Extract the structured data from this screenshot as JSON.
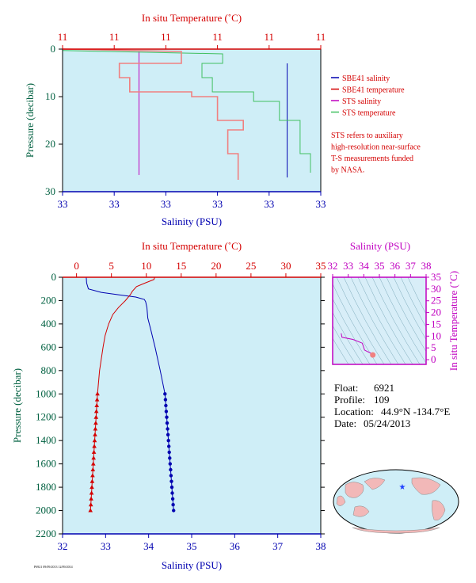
{
  "colors": {
    "plot_bg": "#cfeef7",
    "red": "#d40000",
    "salmon": "#f08080",
    "blue": "#0000b0",
    "green": "#40c060",
    "magenta": "#c000c0",
    "axis_green": "#1a5a3a",
    "ts_panel_bg": "#d8eef8"
  },
  "legend": {
    "items": [
      {
        "label": "SBE41 salinity",
        "color": "#0000b0"
      },
      {
        "label": "SBE41 temperature",
        "color": "#d40000"
      },
      {
        "label": "STS salinity",
        "color": "#c000c0"
      },
      {
        "label": "STS temperature",
        "color": "#40c060"
      }
    ],
    "note_lines": [
      "STS refers to auxiliary",
      "high-resolution near-surface",
      "T-S measurements funded",
      "by NASA."
    ]
  },
  "info": {
    "float_label": "Float:",
    "float_value": "6921",
    "profile_label": "Profile:",
    "profile_value": "109",
    "location_label": "Location:",
    "location_value": "44.9°N  -134.7°E",
    "date_label": "Date:",
    "date_value": "05/24/2013"
  },
  "footer_tiny": "P6921 09/09/2013 12/09/2014",
  "chart_data": [
    {
      "type": "line",
      "id": "near-surface",
      "top_axis_label": "In situ Temperature (˚C)",
      "bottom_axis_label": "Salinity (PSU)",
      "left_axis_label": "Pressure (decibar)",
      "top_ticks": [
        "11",
        "11",
        "11",
        "11",
        "11",
        "11"
      ],
      "bottom_ticks": [
        "33",
        "33",
        "33",
        "33",
        "33",
        "33"
      ],
      "y_ticks": [
        "0",
        "10",
        "20",
        "30"
      ],
      "ylim": [
        0,
        30
      ],
      "xlim_index": [
        0,
        5
      ],
      "series": [
        {
          "name": "STS salinity",
          "points": [
            [
              1.48,
              0.5
            ],
            [
              1.48,
              26.5
            ]
          ]
        },
        {
          "name": "SBE41 salinity",
          "points": [
            [
              4.35,
              3
            ],
            [
              4.35,
              27
            ]
          ]
        },
        {
          "name": "STS temperature",
          "points": [
            [
              0,
              0.3
            ],
            [
              3.1,
              1
            ],
            [
              3.1,
              3
            ],
            [
              2.7,
              3
            ],
            [
              2.7,
              6
            ],
            [
              2.9,
              6
            ],
            [
              2.9,
              9
            ],
            [
              3.7,
              9
            ],
            [
              3.7,
              11
            ],
            [
              4.2,
              11
            ],
            [
              4.2,
              15
            ],
            [
              4.6,
              15
            ],
            [
              4.6,
              22
            ],
            [
              4.8,
              22
            ],
            [
              4.8,
              26
            ]
          ]
        },
        {
          "name": "SBE41 temperature",
          "points": [
            [
              0,
              0
            ],
            [
              2.3,
              0.5
            ],
            [
              2.3,
              3
            ],
            [
              1.1,
              3
            ],
            [
              1.1,
              6
            ],
            [
              1.3,
              6
            ],
            [
              1.3,
              9
            ],
            [
              2.5,
              9
            ],
            [
              2.5,
              10
            ],
            [
              3.0,
              10
            ],
            [
              3.0,
              15
            ],
            [
              3.5,
              15
            ],
            [
              3.5,
              17
            ],
            [
              3.2,
              17
            ],
            [
              3.2,
              22
            ],
            [
              3.4,
              22
            ],
            [
              3.4,
              27.5
            ]
          ]
        }
      ]
    },
    {
      "type": "line",
      "id": "full-profile",
      "top_axis_label": "In situ Temperature (˚C)",
      "bottom_axis_label": "Salinity (PSU)",
      "left_axis_label": "Pressure (decibar)",
      "temperature_ticks": [
        0,
        5,
        10,
        15,
        20,
        25,
        30,
        35
      ],
      "salinity_ticks": [
        32,
        33,
        34,
        35,
        36,
        37,
        38
      ],
      "pressure_ticks": [
        0,
        200,
        400,
        600,
        800,
        1000,
        1200,
        1400,
        1600,
        1800,
        2000,
        2200
      ],
      "temperature_lim": [
        -2,
        35
      ],
      "salinity_lim": [
        32,
        38
      ],
      "pressure_lim": [
        0,
        2200
      ],
      "series": [
        {
          "name": "SBE41 salinity",
          "pressure": [
            0,
            50,
            100,
            130,
            150,
            170,
            190,
            210,
            260,
            350,
            450,
            600,
            800,
            1000
          ],
          "values": [
            32.55,
            32.56,
            32.6,
            32.9,
            33.3,
            33.7,
            33.9,
            33.93,
            33.96,
            33.98,
            34.05,
            34.15,
            34.27,
            34.38
          ]
        },
        {
          "name": "SBE41 temperature",
          "pressure": [
            0,
            20,
            50,
            80,
            120,
            150,
            200,
            260,
            320,
            400,
            500,
            600,
            800,
            1000
          ],
          "values": [
            11.2,
            11.1,
            9.8,
            8.6,
            8.0,
            7.7,
            7.0,
            6.0,
            5.2,
            4.6,
            4.1,
            3.8,
            3.3,
            3.0
          ]
        },
        {
          "name": "SBE41 salinity (deep samples)",
          "pressure": [
            1000,
            1050,
            1100,
            1150,
            1200,
            1250,
            1300,
            1350,
            1400,
            1450,
            1500,
            1550,
            1600,
            1650,
            1700,
            1750,
            1800,
            1850,
            1900,
            1950,
            2000
          ],
          "values": [
            34.38,
            34.39,
            34.4,
            34.41,
            34.42,
            34.43,
            34.44,
            34.45,
            34.46,
            34.47,
            34.48,
            34.49,
            34.5,
            34.51,
            34.52,
            34.53,
            34.54,
            34.55,
            34.56,
            34.57,
            34.58
          ]
        },
        {
          "name": "SBE41 temperature (deep samples)",
          "pressure": [
            1000,
            1050,
            1100,
            1150,
            1200,
            1250,
            1300,
            1350,
            1400,
            1450,
            1500,
            1550,
            1600,
            1650,
            1700,
            1750,
            1800,
            1850,
            1900,
            1950,
            2000
          ],
          "values": [
            3.0,
            2.95,
            2.9,
            2.85,
            2.8,
            2.75,
            2.7,
            2.65,
            2.6,
            2.55,
            2.5,
            2.45,
            2.4,
            2.35,
            2.3,
            2.25,
            2.2,
            2.15,
            2.1,
            2.05,
            2.0
          ]
        }
      ]
    },
    {
      "type": "scatter",
      "id": "ts-diagram",
      "top_axis_label": "Salinity (PSU)",
      "right_axis_label": "In situ Temperature (˚C)",
      "salinity_ticks": [
        32,
        33,
        34,
        35,
        36,
        37,
        38
      ],
      "temperature_ticks": [
        0,
        5,
        10,
        15,
        20,
        25,
        30,
        35
      ],
      "salinity_lim": [
        32,
        38
      ],
      "temperature_lim": [
        -2,
        35
      ],
      "series": [
        {
          "name": "T-S curve",
          "salinity": [
            32.55,
            32.6,
            33.3,
            33.9,
            34.05,
            34.27,
            34.38,
            34.45,
            34.55,
            34.58
          ],
          "temperature": [
            11.2,
            9.5,
            8.6,
            7.0,
            4.1,
            3.3,
            3.0,
            2.7,
            2.2,
            2.0
          ]
        }
      ]
    }
  ]
}
